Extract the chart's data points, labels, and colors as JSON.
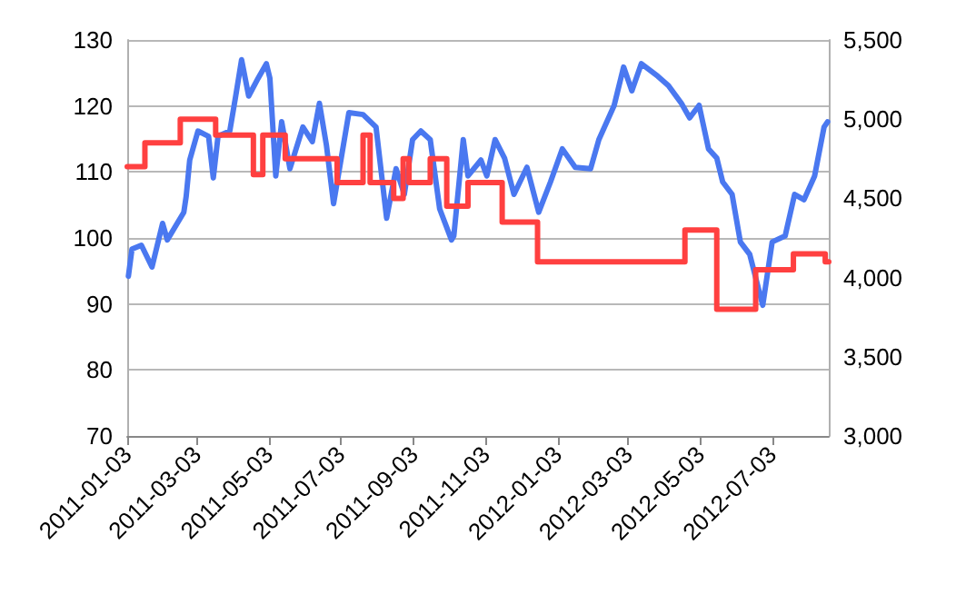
{
  "chart_data": {
    "type": "line",
    "grid": "y",
    "marker": "none",
    "line_style": "solid",
    "xlim": [
      "2011-01-03",
      "2012-08-20"
    ],
    "xticks": [
      "2011-01-03",
      "2011-03-03",
      "2011-05-03",
      "2011-07-03",
      "2011-09-03",
      "2011-11-03",
      "2012-01-03",
      "2012-03-03",
      "2012-05-03",
      "2012-07-03"
    ],
    "ylim": [
      70,
      130
    ],
    "yticks": [
      70,
      80,
      90,
      100,
      110,
      120,
      130
    ],
    "y2lim": [
      3000,
      5500
    ],
    "y2ticks": [
      {
        "value": 3000,
        "label": "3,000"
      },
      {
        "value": 3500,
        "label": "3,500"
      },
      {
        "value": 4000,
        "label": "4,000"
      },
      {
        "value": 4500,
        "label": "4,500"
      },
      {
        "value": 5000,
        "label": "5,000"
      },
      {
        "value": 5500,
        "label": "5,500"
      }
    ],
    "series": [
      {
        "color": "#4a78f0",
        "x": [
          "2011-01-04",
          "2011-01-07",
          "2011-01-15",
          "2011-01-24",
          "2011-02-02",
          "2011-02-06",
          "2011-02-20",
          "2011-02-22",
          "2011-02-25",
          "2011-03-04",
          "2011-03-13",
          "2011-03-17",
          "2011-03-21",
          "2011-03-31",
          "2011-04-05",
          "2011-04-10",
          "2011-04-16",
          "2011-04-24",
          "2011-05-01",
          "2011-05-04",
          "2011-05-09",
          "2011-05-14",
          "2011-05-21",
          "2011-06-01",
          "2011-06-09",
          "2011-06-15",
          "2011-06-21",
          "2011-06-27",
          "2011-07-10",
          "2011-07-22",
          "2011-08-02",
          "2011-08-11",
          "2011-08-19",
          "2011-08-26",
          "2011-09-02",
          "2011-09-09",
          "2011-09-17",
          "2011-09-25",
          "2011-10-05",
          "2011-10-07",
          "2011-10-15",
          "2011-10-19",
          "2011-10-30",
          "2011-11-04",
          "2011-11-11",
          "2011-11-19",
          "2011-11-27",
          "2011-12-08",
          "2011-12-18",
          "2011-12-28",
          "2012-01-07",
          "2012-01-18",
          "2012-01-31",
          "2012-02-07",
          "2012-02-20",
          "2012-02-28",
          "2012-03-06",
          "2012-03-14",
          "2012-03-28",
          "2012-04-06",
          "2012-04-17",
          "2012-04-24",
          "2012-05-02",
          "2012-05-10",
          "2012-05-17",
          "2012-05-22",
          "2012-05-30",
          "2012-06-06",
          "2012-06-14",
          "2012-06-25",
          "2012-07-03",
          "2012-07-14",
          "2012-07-22",
          "2012-07-30",
          "2012-08-08",
          "2012-08-16",
          "2012-08-19"
        ],
        "values": [
          94.2,
          98.3,
          98.9,
          95.6,
          102.2,
          99.7,
          103.9,
          106.3,
          111.8,
          116.2,
          115.4,
          109.1,
          115.4,
          116.2,
          121.5,
          127,
          121.5,
          124.2,
          126.4,
          124.2,
          109.4,
          117.6,
          110.5,
          116.8,
          114.6,
          120.4,
          114,
          105.2,
          119,
          118.7,
          116.8,
          103,
          110.5,
          106.6,
          114.9,
          116.2,
          114.9,
          104.4,
          99.7,
          100.3,
          114.9,
          109.4,
          111.8,
          109.4,
          114.9,
          112.1,
          106.6,
          110.7,
          103.9,
          108.5,
          113.5,
          110.7,
          110.5,
          114.9,
          120.1,
          125.9,
          122.3,
          126.4,
          124.5,
          123.1,
          120.4,
          118.2,
          120.1,
          113.5,
          112.1,
          108.5,
          106.6,
          99.4,
          97.5,
          89.8,
          99.4,
          100.3,
          106.6,
          105.8,
          109.4,
          116.8,
          117.6
        ]
      },
      {
        "type": "step",
        "axis": "y2",
        "color": "#ff4040",
        "x": [
          "2011-01-03",
          "2011-01-18",
          "2011-02-17",
          "2011-03-19",
          "2011-04-20",
          "2011-04-28",
          "2011-05-17",
          "2011-06-30",
          "2011-07-22",
          "2011-07-28",
          "2011-08-17",
          "2011-08-25",
          "2011-08-30",
          "2011-09-17",
          "2011-10-01",
          "2011-10-19",
          "2011-11-17",
          "2011-12-17",
          "2012-04-20",
          "2012-05-17",
          "2012-06-19",
          "2012-07-21",
          "2012-08-17",
          "2012-08-20"
        ],
        "values": [
          4700,
          4850,
          5000,
          4900,
          4650,
          4900,
          4750,
          4600,
          4900,
          4600,
          4500,
          4750,
          4600,
          4750,
          4450,
          4600,
          4350,
          4100,
          4300,
          3800,
          4050,
          4150,
          4100,
          4100
        ]
      }
    ]
  }
}
